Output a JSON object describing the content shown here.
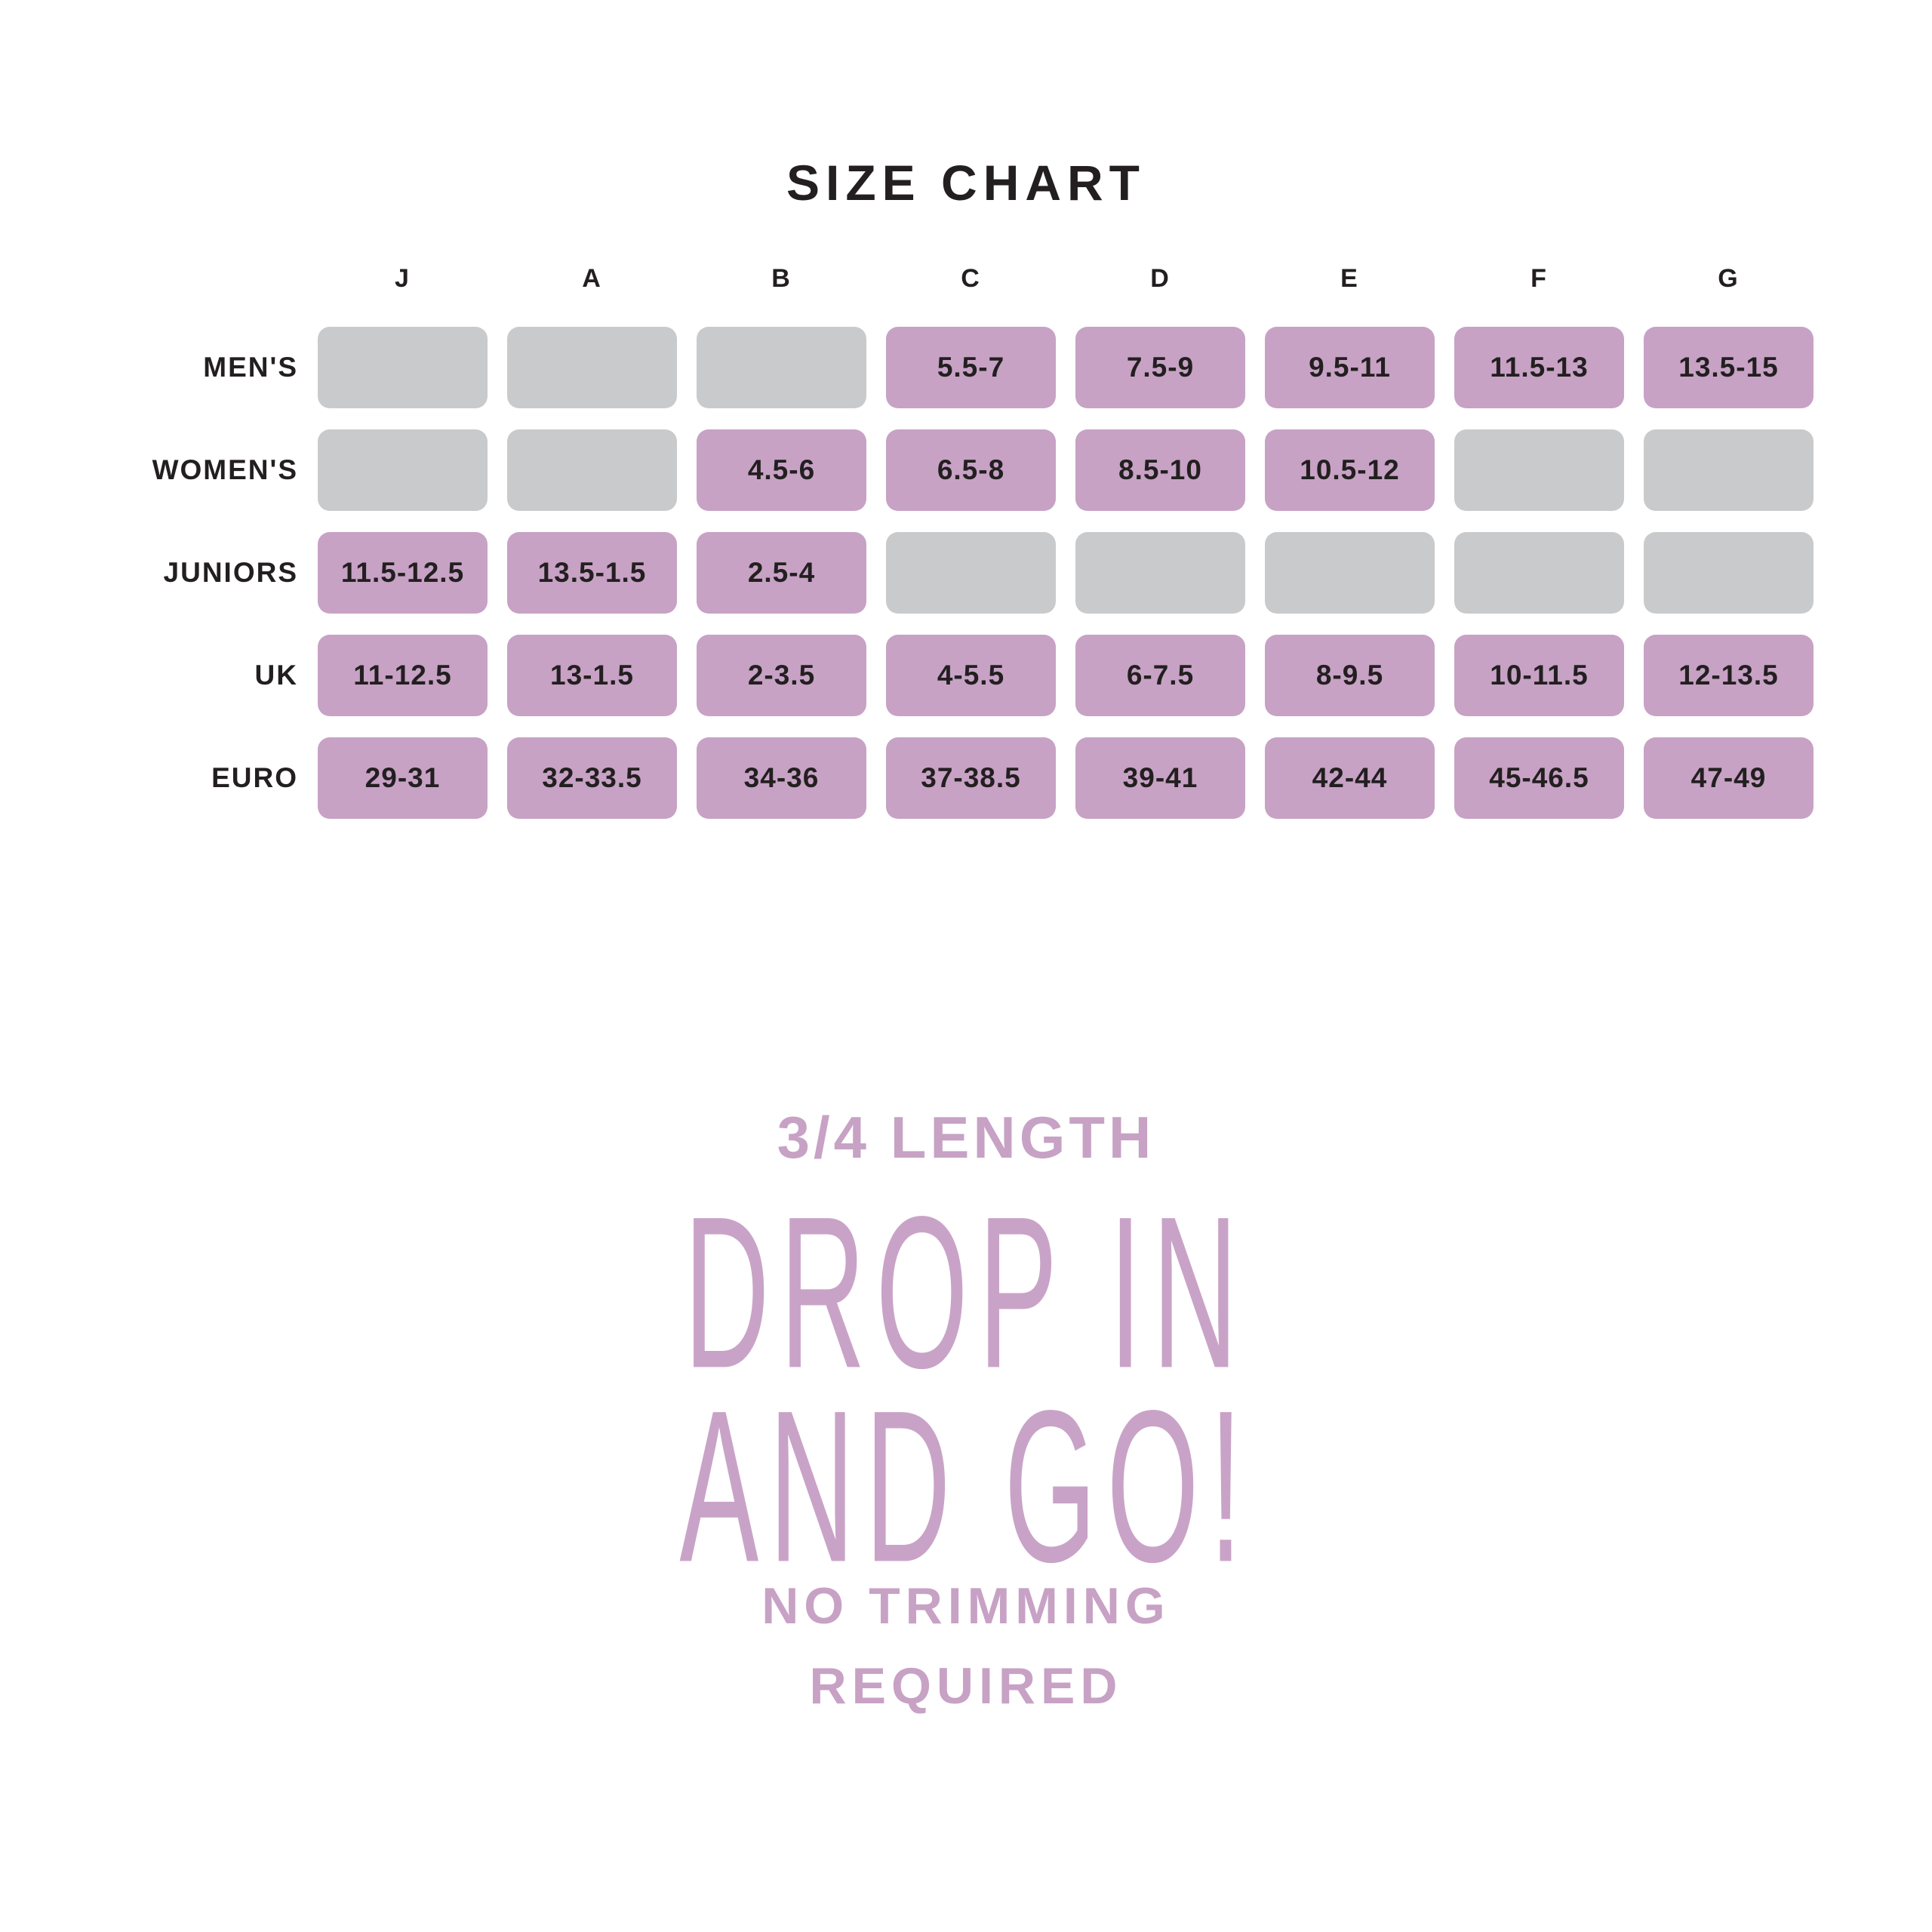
{
  "title": "SIZE CHART",
  "table": {
    "column_headers": [
      "J",
      "A",
      "B",
      "C",
      "D",
      "E",
      "F",
      "G"
    ],
    "rows": [
      {
        "label": "MEN'S",
        "cells": [
          "",
          "",
          "",
          "5.5-7",
          "7.5-9",
          "9.5-11",
          "11.5-13",
          "13.5-15"
        ]
      },
      {
        "label": "WOMEN'S",
        "cells": [
          "",
          "",
          "4.5-6",
          "6.5-8",
          "8.5-10",
          "10.5-12",
          "",
          ""
        ]
      },
      {
        "label": "JUNIORS",
        "cells": [
          "11.5-12.5",
          "13.5-1.5",
          "2.5-4",
          "",
          "",
          "",
          "",
          ""
        ]
      },
      {
        "label": "UK",
        "cells": [
          "11-12.5",
          "13-1.5",
          "2-3.5",
          "4-5.5",
          "6-7.5",
          "8-9.5",
          "10-11.5",
          "12-13.5"
        ]
      },
      {
        "label": "EURO",
        "cells": [
          "29-31",
          "32-33.5",
          "34-36",
          "37-38.5",
          "39-41",
          "42-44",
          "45-46.5",
          "47-49"
        ]
      }
    ]
  },
  "promo": {
    "subtitle": "3/4 LENGTH",
    "headline_line1": "DROP IN",
    "headline_line2": "AND GO!",
    "note_line1": "NO TRIMMING",
    "note_line2": "REQUIRED"
  },
  "colors": {
    "accent_purple": "#c7a2c5",
    "headline_purple": "#c9a3c7",
    "empty_cell_gray": "#c9cacb",
    "text_dark": "#231f20",
    "background": "#ffffff"
  },
  "chart_data": {
    "type": "table",
    "title": "SIZE CHART",
    "columns": [
      "J",
      "A",
      "B",
      "C",
      "D",
      "E",
      "F",
      "G"
    ],
    "rows": [
      {
        "label": "MEN'S",
        "values": [
          null,
          null,
          null,
          "5.5-7",
          "7.5-9",
          "9.5-11",
          "11.5-13",
          "13.5-15"
        ]
      },
      {
        "label": "WOMEN'S",
        "values": [
          null,
          null,
          "4.5-6",
          "6.5-8",
          "8.5-10",
          "10.5-12",
          null,
          null
        ]
      },
      {
        "label": "JUNIORS",
        "values": [
          "11.5-12.5",
          "13.5-1.5",
          "2.5-4",
          null,
          null,
          null,
          null,
          null
        ]
      },
      {
        "label": "UK",
        "values": [
          "11-12.5",
          "13-1.5",
          "2-3.5",
          "4-5.5",
          "6-7.5",
          "8-9.5",
          "10-11.5",
          "12-13.5"
        ]
      },
      {
        "label": "EURO",
        "values": [
          "29-31",
          "32-33.5",
          "34-36",
          "37-38.5",
          "39-41",
          "42-44",
          "45-46.5",
          "47-49"
        ]
      }
    ],
    "legend": "filled cells = available size range, gray cells = not applicable"
  }
}
